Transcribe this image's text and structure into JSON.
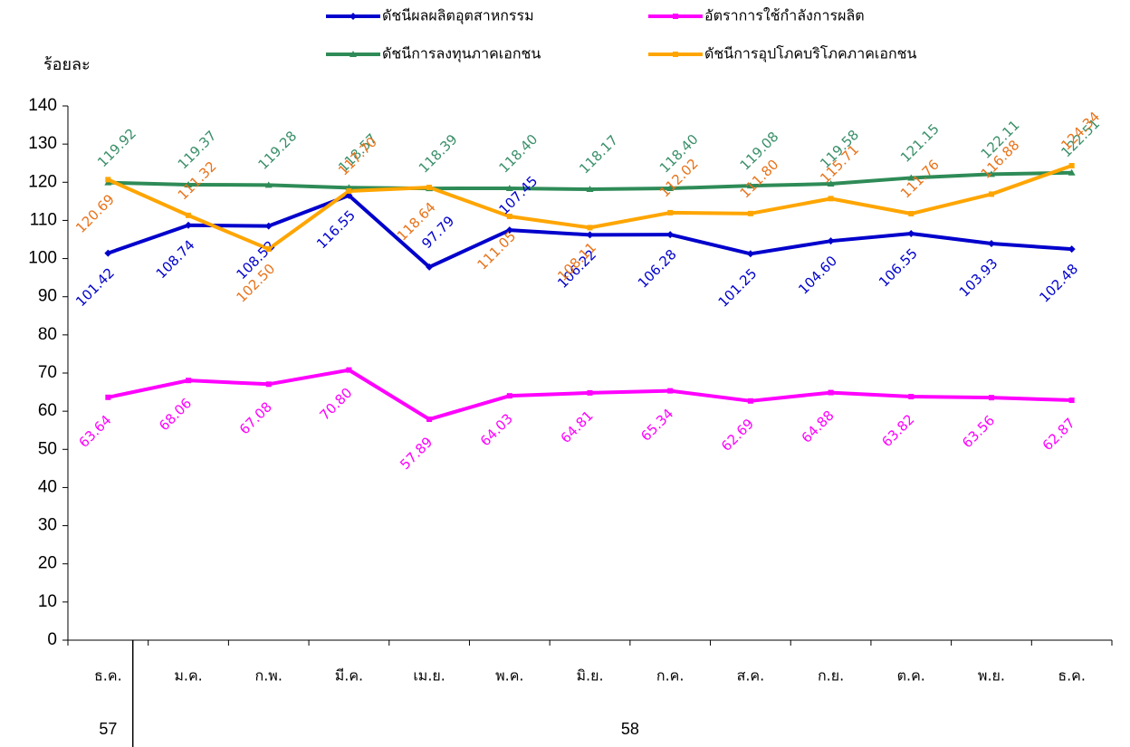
{
  "chart_data": {
    "type": "line",
    "y_label": "ร้อยละ",
    "categories": [
      "ธ.ค.",
      "ม.ค.",
      "ก.พ.",
      "มี.ค.",
      "เม.ย.",
      "พ.ค.",
      "มิ.ย.",
      "ก.ค.",
      "ส.ค.",
      "ก.ย.",
      "ต.ค.",
      "พ.ย.",
      "ธ.ค."
    ],
    "x_groups": [
      {
        "label": "57",
        "span": 1
      },
      {
        "label": "58",
        "span": 12
      }
    ],
    "ylim": [
      0,
      140
    ],
    "yticks": [
      0,
      10,
      20,
      30,
      40,
      50,
      60,
      70,
      80,
      90,
      100,
      110,
      120,
      130,
      140
    ],
    "grid": false,
    "legend": "top",
    "series": [
      {
        "name": "ดัชนีผลผลิตอุตสาหกรรม",
        "color": "#0000cc",
        "values": [
          101.42,
          108.74,
          108.52,
          116.55,
          97.79,
          107.45,
          106.22,
          106.28,
          101.25,
          104.6,
          106.55,
          103.93,
          102.48
        ],
        "value_labels": [
          "101.42",
          "108.74",
          "108.52",
          "116.55",
          "97.79",
          "107.45",
          "106.22",
          "106.28",
          "101.25",
          "104.60",
          "106.55",
          "103.93",
          "102.48"
        ]
      },
      {
        "name": "อัตราการใช้กำลังการผลิต",
        "color": "#ff00ff",
        "values": [
          63.64,
          68.06,
          67.08,
          70.8,
          57.89,
          64.03,
          64.81,
          65.34,
          62.69,
          64.88,
          63.82,
          63.56,
          62.87
        ],
        "value_labels": [
          "63.64",
          "68.06",
          "67.08",
          "70.80",
          "57.89",
          "64.03",
          "64.81",
          "65.34",
          "62.69",
          "64.88",
          "63.82",
          "63.56",
          "62.87"
        ]
      },
      {
        "name": "ดัชนีการลงทุนภาคเอกชน",
        "color": "#2e8b57",
        "values": [
          119.92,
          119.37,
          119.28,
          118.57,
          118.39,
          118.4,
          118.17,
          118.4,
          119.08,
          119.58,
          121.15,
          122.11,
          122.51
        ],
        "value_labels": [
          "119.92",
          "119.37",
          "119.28",
          "118.57",
          "118.39",
          "118.40",
          "118.17",
          "118.40",
          "119.08",
          "119.58",
          "121.15",
          "122.11",
          "122.51"
        ]
      },
      {
        "name": "ดัชนีการอุปโภคบริโภคภาคเอกชน",
        "color": "#ffa500",
        "values": [
          120.69,
          111.32,
          102.5,
          117.7,
          118.64,
          111.05,
          108.11,
          112.02,
          111.8,
          115.71,
          111.76,
          116.88,
          124.34
        ],
        "value_labels": [
          "120.69",
          "111.32",
          "102.50",
          "117.70",
          "118.64",
          "111.05",
          "108.11",
          "112.02",
          "111.80",
          "115.71",
          "111.76",
          "116.88",
          "124.34"
        ]
      }
    ]
  }
}
